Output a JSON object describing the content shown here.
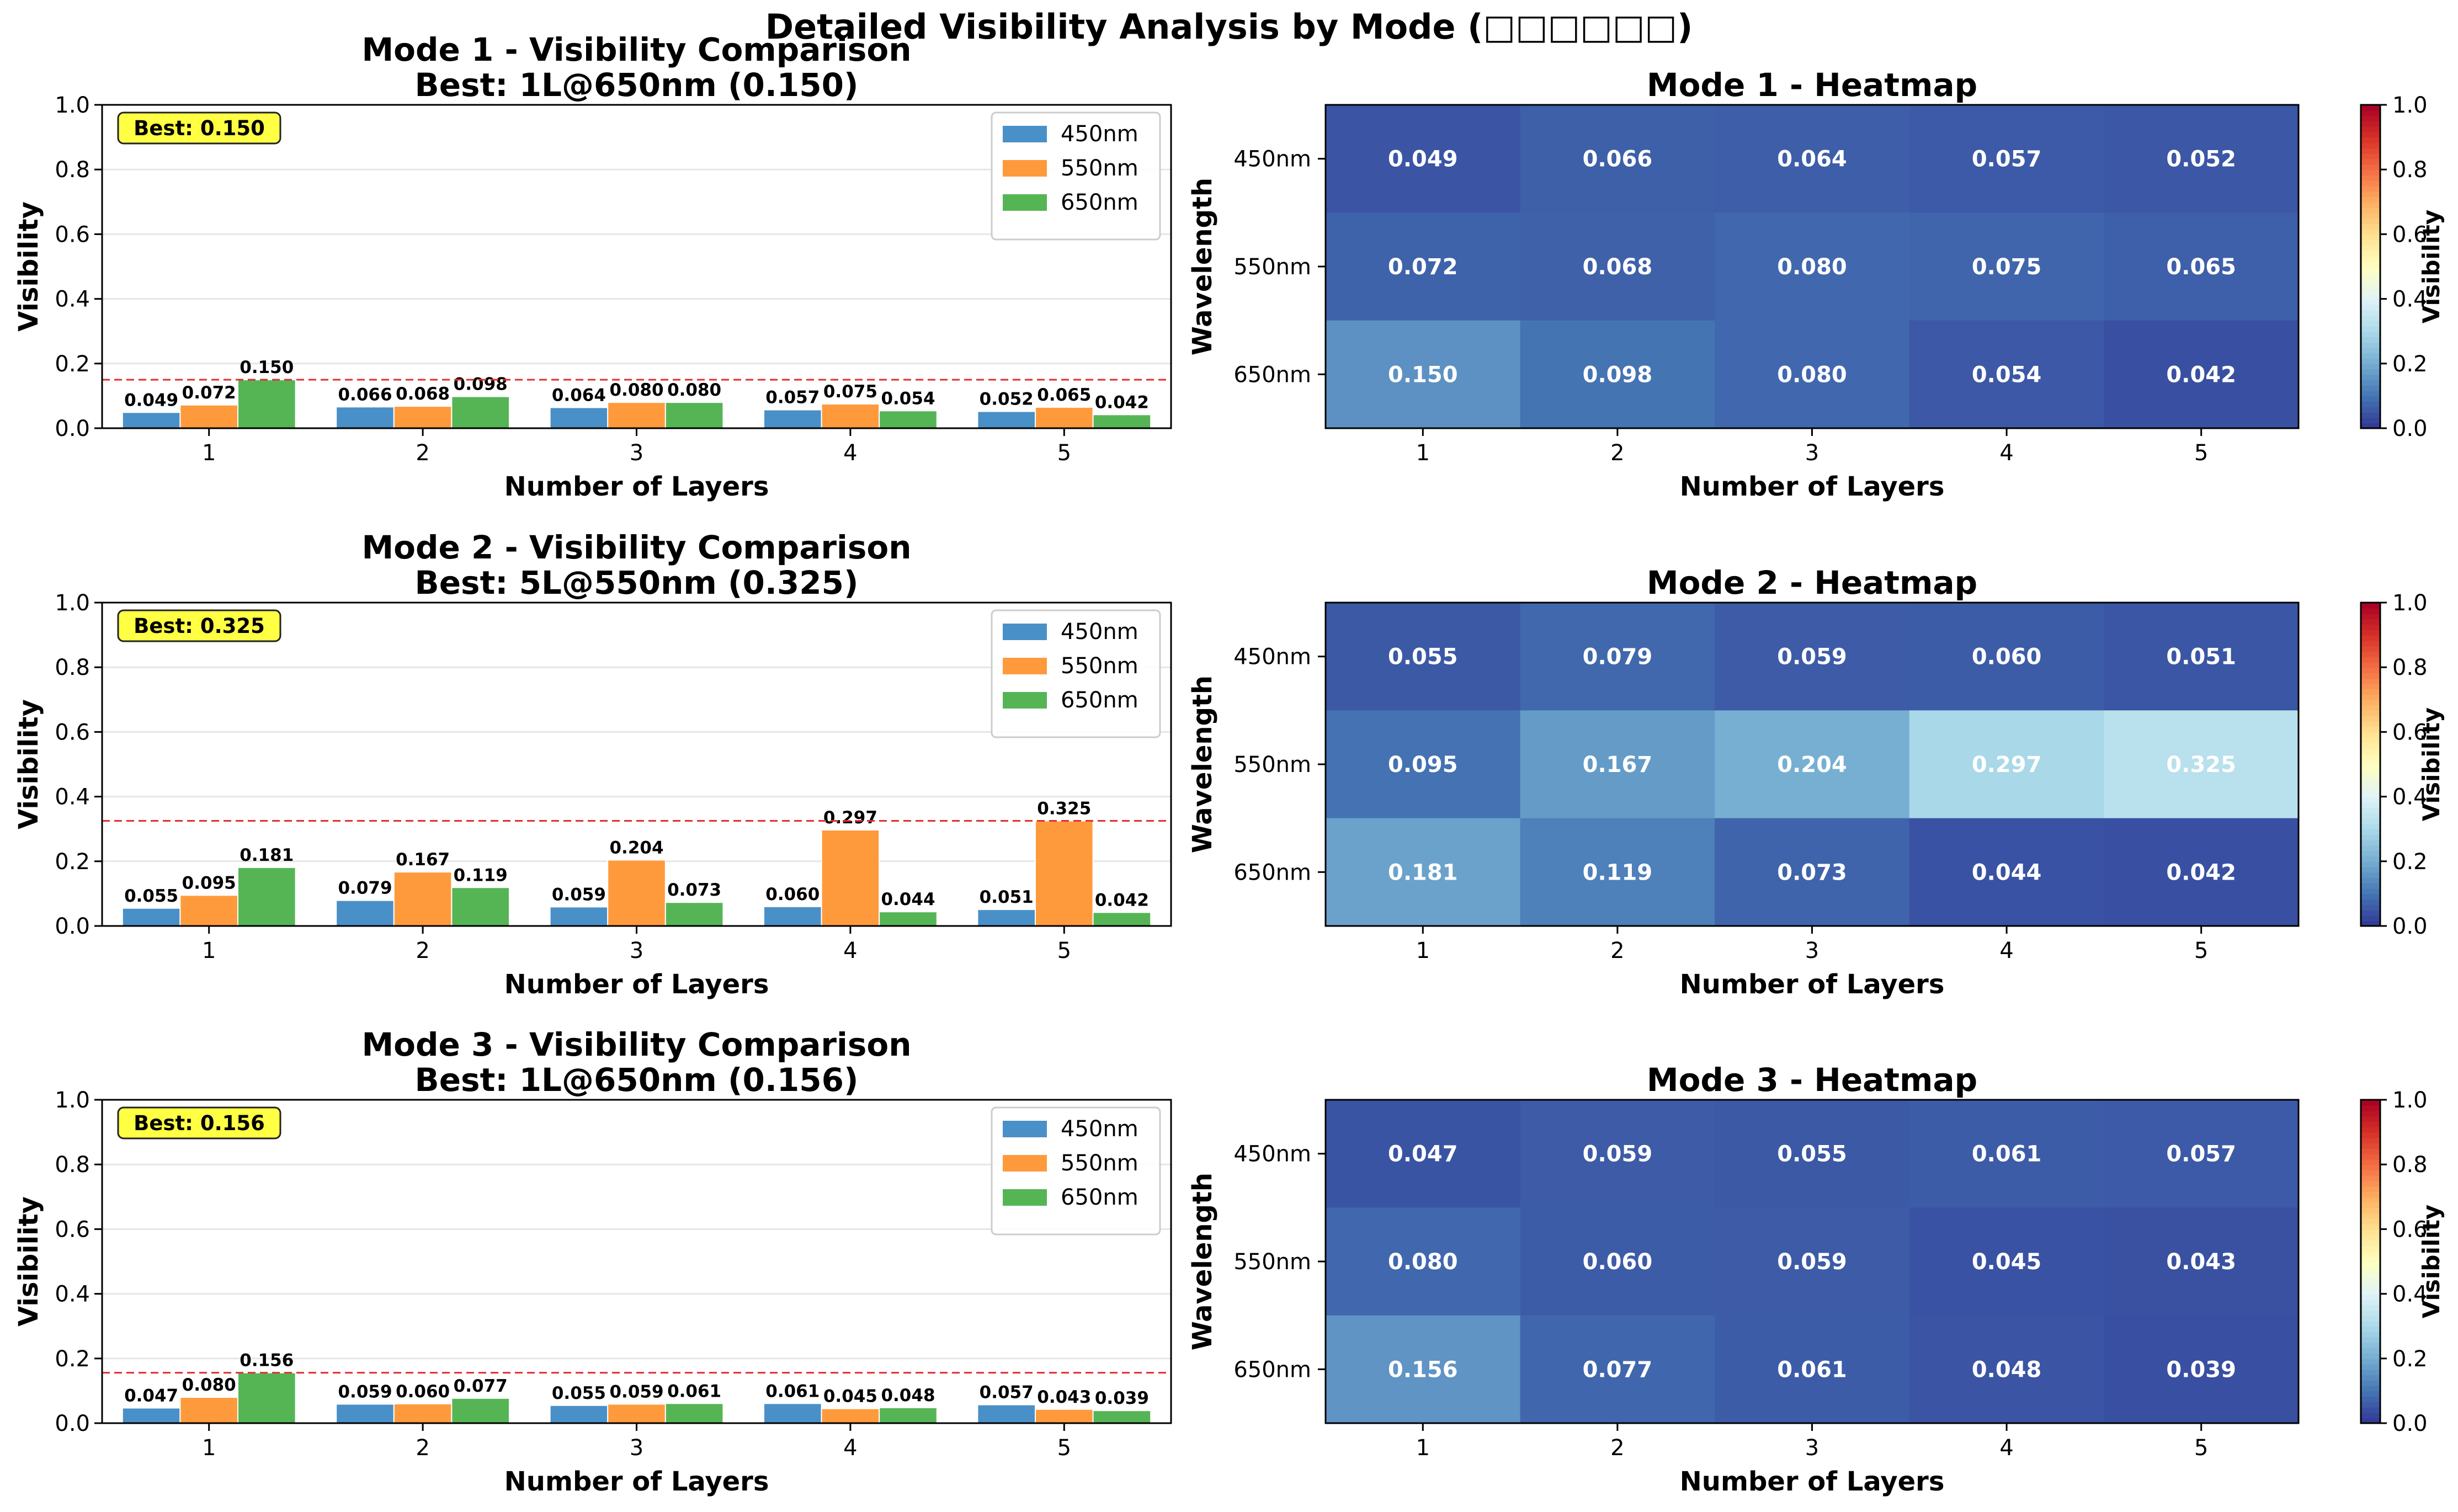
{
  "suptitle": "Detailed Visibility Analysis by Mode (□□□□□□)",
  "colors": {
    "nm450": "#4a90c8",
    "nm550": "#ff9a3c",
    "nm650": "#55b555",
    "best_line": "#e03030",
    "best_badge": "#ffff44",
    "grid": "#e6e6e6"
  },
  "heatmap_colormap": "RdYlBu_r",
  "chart_data": [
    {
      "type": "bar",
      "title": "Mode 1 - Visibility Comparison",
      "subtitle": "Best: 1L@650nm (0.150)",
      "badge": "Best: 0.150",
      "best_value": 0.15,
      "xlabel": "Number of Layers",
      "ylabel": "Visibility",
      "ylim": [
        0,
        1.0
      ],
      "yticks": [
        "0.0",
        "0.2",
        "0.4",
        "0.6",
        "0.8",
        "1.0"
      ],
      "categories": [
        "1",
        "2",
        "3",
        "4",
        "5"
      ],
      "legend_position": "top-right",
      "series": [
        {
          "name": "450nm",
          "values": [
            0.049,
            0.066,
            0.064,
            0.057,
            0.052
          ],
          "labels": [
            "0.049",
            "0.066",
            "0.064",
            "0.057",
            "0.052"
          ]
        },
        {
          "name": "550nm",
          "values": [
            0.072,
            0.068,
            0.08,
            0.075,
            0.065
          ],
          "labels": [
            "0.072",
            "0.068",
            "0.080",
            "0.075",
            "0.065"
          ]
        },
        {
          "name": "650nm",
          "values": [
            0.15,
            0.098,
            0.08,
            0.054,
            0.042
          ],
          "labels": [
            "0.150",
            "0.098",
            "0.080",
            "0.054",
            "0.042"
          ]
        }
      ]
    },
    {
      "type": "heatmap",
      "title": "Mode 1 - Heatmap",
      "xlabel": "Number of Layers",
      "ylabel": "Wavelength",
      "colorbar_label": "Visibility",
      "vmin": 0.0,
      "vmax": 1.0,
      "cbar_ticks": [
        "0.0",
        "0.2",
        "0.4",
        "0.6",
        "0.8",
        "1.0"
      ],
      "x": [
        "1",
        "2",
        "3",
        "4",
        "5"
      ],
      "y": [
        "450nm",
        "550nm",
        "650nm"
      ],
      "values": [
        [
          0.049,
          0.066,
          0.064,
          0.057,
          0.052
        ],
        [
          0.072,
          0.068,
          0.08,
          0.075,
          0.065
        ],
        [
          0.15,
          0.098,
          0.08,
          0.054,
          0.042
        ]
      ],
      "labels": [
        [
          "0.049",
          "0.066",
          "0.064",
          "0.057",
          "0.052"
        ],
        [
          "0.072",
          "0.068",
          "0.080",
          "0.075",
          "0.065"
        ],
        [
          "0.150",
          "0.098",
          "0.080",
          "0.054",
          "0.042"
        ]
      ]
    },
    {
      "type": "bar",
      "title": "Mode 2 - Visibility Comparison",
      "subtitle": "Best: 5L@550nm (0.325)",
      "badge": "Best: 0.325",
      "best_value": 0.325,
      "xlabel": "Number of Layers",
      "ylabel": "Visibility",
      "ylim": [
        0,
        1.0
      ],
      "yticks": [
        "0.0",
        "0.2",
        "0.4",
        "0.6",
        "0.8",
        "1.0"
      ],
      "categories": [
        "1",
        "2",
        "3",
        "4",
        "5"
      ],
      "legend_position": "top-right",
      "series": [
        {
          "name": "450nm",
          "values": [
            0.055,
            0.079,
            0.059,
            0.06,
            0.051
          ],
          "labels": [
            "0.055",
            "0.079",
            "0.059",
            "0.060",
            "0.051"
          ]
        },
        {
          "name": "550nm",
          "values": [
            0.095,
            0.167,
            0.204,
            0.297,
            0.325
          ],
          "labels": [
            "0.095",
            "0.167",
            "0.204",
            "0.297",
            "0.325"
          ]
        },
        {
          "name": "650nm",
          "values": [
            0.181,
            0.119,
            0.073,
            0.044,
            0.042
          ],
          "labels": [
            "0.181",
            "0.119",
            "0.073",
            "0.044",
            "0.042"
          ]
        }
      ]
    },
    {
      "type": "heatmap",
      "title": "Mode 2 - Heatmap",
      "xlabel": "Number of Layers",
      "ylabel": "Wavelength",
      "colorbar_label": "Visibility",
      "vmin": 0.0,
      "vmax": 1.0,
      "cbar_ticks": [
        "0.0",
        "0.2",
        "0.4",
        "0.6",
        "0.8",
        "1.0"
      ],
      "x": [
        "1",
        "2",
        "3",
        "4",
        "5"
      ],
      "y": [
        "450nm",
        "550nm",
        "650nm"
      ],
      "values": [
        [
          0.055,
          0.079,
          0.059,
          0.06,
          0.051
        ],
        [
          0.095,
          0.167,
          0.204,
          0.297,
          0.325
        ],
        [
          0.181,
          0.119,
          0.073,
          0.044,
          0.042
        ]
      ],
      "labels": [
        [
          "0.055",
          "0.079",
          "0.059",
          "0.060",
          "0.051"
        ],
        [
          "0.095",
          "0.167",
          "0.204",
          "0.297",
          "0.325"
        ],
        [
          "0.181",
          "0.119",
          "0.073",
          "0.044",
          "0.042"
        ]
      ]
    },
    {
      "type": "bar",
      "title": "Mode 3 - Visibility Comparison",
      "subtitle": "Best: 1L@650nm (0.156)",
      "badge": "Best: 0.156",
      "best_value": 0.156,
      "xlabel": "Number of Layers",
      "ylabel": "Visibility",
      "ylim": [
        0,
        1.0
      ],
      "yticks": [
        "0.0",
        "0.2",
        "0.4",
        "0.6",
        "0.8",
        "1.0"
      ],
      "categories": [
        "1",
        "2",
        "3",
        "4",
        "5"
      ],
      "legend_position": "top-right",
      "series": [
        {
          "name": "450nm",
          "values": [
            0.047,
            0.059,
            0.055,
            0.061,
            0.057
          ],
          "labels": [
            "0.047",
            "0.059",
            "0.055",
            "0.061",
            "0.057"
          ]
        },
        {
          "name": "550nm",
          "values": [
            0.08,
            0.06,
            0.059,
            0.045,
            0.043
          ],
          "labels": [
            "0.080",
            "0.060",
            "0.059",
            "0.045",
            "0.043"
          ]
        },
        {
          "name": "650nm",
          "values": [
            0.156,
            0.077,
            0.061,
            0.048,
            0.039
          ],
          "labels": [
            "0.156",
            "0.077",
            "0.061",
            "0.048",
            "0.039"
          ]
        }
      ]
    },
    {
      "type": "heatmap",
      "title": "Mode 3 - Heatmap",
      "xlabel": "Number of Layers",
      "ylabel": "Wavelength",
      "colorbar_label": "Visibility",
      "vmin": 0.0,
      "vmax": 1.0,
      "cbar_ticks": [
        "0.0",
        "0.2",
        "0.4",
        "0.6",
        "0.8",
        "1.0"
      ],
      "x": [
        "1",
        "2",
        "3",
        "4",
        "5"
      ],
      "y": [
        "450nm",
        "550nm",
        "650nm"
      ],
      "values": [
        [
          0.047,
          0.059,
          0.055,
          0.061,
          0.057
        ],
        [
          0.08,
          0.06,
          0.059,
          0.045,
          0.043
        ],
        [
          0.156,
          0.077,
          0.061,
          0.048,
          0.039
        ]
      ],
      "labels": [
        [
          "0.047",
          "0.059",
          "0.055",
          "0.061",
          "0.057"
        ],
        [
          "0.080",
          "0.060",
          "0.059",
          "0.045",
          "0.043"
        ],
        [
          "0.156",
          "0.077",
          "0.061",
          "0.048",
          "0.039"
        ]
      ]
    }
  ]
}
